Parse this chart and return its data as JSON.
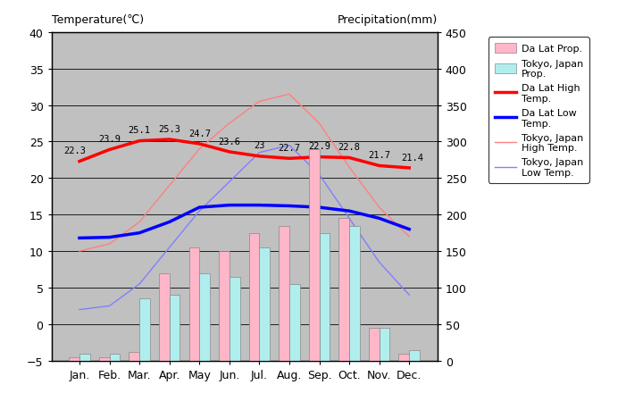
{
  "months": [
    "Jan.",
    "Feb.",
    "Mar.",
    "Apr.",
    "May",
    "Jun.",
    "Jul.",
    "Aug.",
    "Sep.",
    "Oct.",
    "Nov.",
    "Dec."
  ],
  "dalat_high": [
    22.3,
    23.9,
    25.1,
    25.3,
    24.7,
    23.6,
    23.0,
    22.7,
    22.9,
    22.8,
    21.7,
    21.4
  ],
  "dalat_low": [
    11.8,
    11.9,
    12.5,
    14.0,
    16.0,
    16.3,
    16.3,
    16.2,
    16.0,
    15.5,
    14.5,
    13.0
  ],
  "tokyo_high": [
    10.0,
    11.0,
    14.0,
    19.0,
    24.0,
    27.5,
    30.5,
    31.5,
    27.5,
    21.5,
    16.0,
    12.0
  ],
  "tokyo_low": [
    2.0,
    2.5,
    5.5,
    10.5,
    15.5,
    19.5,
    23.5,
    24.5,
    20.5,
    14.5,
    8.5,
    4.0
  ],
  "dalat_prec": [
    5,
    5,
    12,
    120,
    155,
    150,
    175,
    185,
    290,
    195,
    45,
    10
  ],
  "tokyo_prec": [
    10,
    10,
    85,
    90,
    120,
    115,
    155,
    105,
    175,
    185,
    45,
    15
  ],
  "temp_ylim": [
    -5,
    40
  ],
  "prec_ylim": [
    0,
    450
  ],
  "temp_yticks": [
    -5,
    0,
    5,
    10,
    15,
    20,
    25,
    30,
    35,
    40
  ],
  "prec_yticks": [
    0,
    50,
    100,
    150,
    200,
    250,
    300,
    350,
    400,
    450
  ],
  "dalat_high_labels": [
    "22.3",
    "23.9",
    "25.1",
    "25.3",
    "24.7",
    "23.6",
    "23",
    "22.7",
    "22.9",
    "22.8",
    "21.7",
    "21.4"
  ],
  "bar_width": 0.35,
  "dalat_bar_color": "#FFB6C8",
  "tokyo_bar_color": "#B0EEEE",
  "dalat_high_color": "#FF0000",
  "dalat_low_color": "#0000FF",
  "tokyo_high_color": "#FF8080",
  "tokyo_low_color": "#8080FF",
  "bg_color": "#C8C8C8",
  "plot_bg_color": "#C0C0C0",
  "title_left": "Temperature(℃)",
  "title_right": "Precipitation(mm)",
  "legend_labels": [
    "Da Lat Prop.",
    "Tokyo, Japan\nProp.",
    "Da Lat High\nTemp.",
    "Da Lat Low\nTemp.",
    "Tokyo, Japan\nHigh Temp.",
    "Tokyo, Japan\nLow Temp."
  ]
}
